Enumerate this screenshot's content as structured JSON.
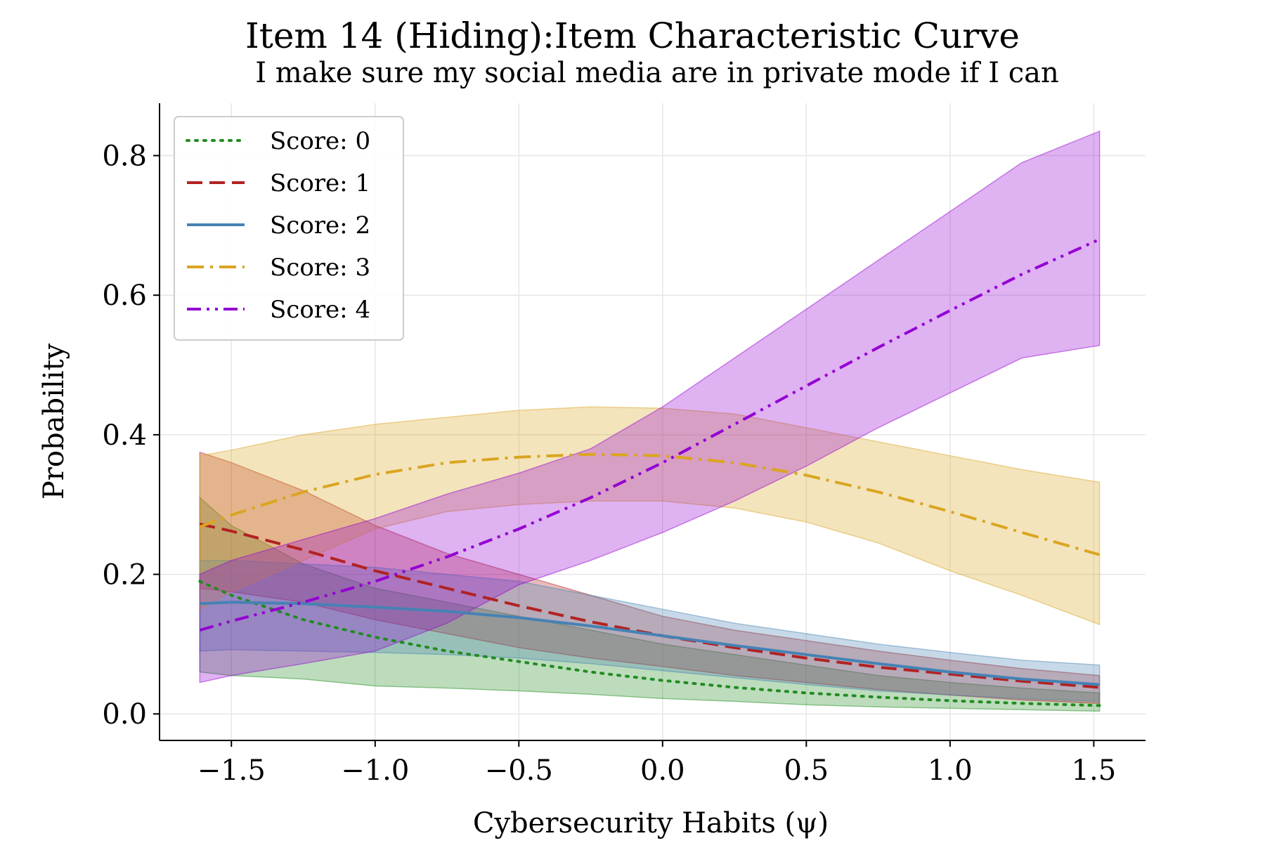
{
  "chart_data": {
    "type": "line",
    "title": "Item 14 (Hiding):Item Characteristic Curve",
    "subtitle": "I make sure my social media are in private mode if I can",
    "xlabel": "Cybersecurity Habits (ψ)",
    "ylabel": "Probability",
    "xlim": [
      -1.75,
      1.68
    ],
    "ylim": [
      -0.038,
      0.875
    ],
    "xticks": [
      -1.5,
      -1.0,
      -0.5,
      0.0,
      0.5,
      1.0,
      1.5
    ],
    "xtick_labels": [
      "−1.5",
      "−1.0",
      "−0.5",
      "0.0",
      "0.5",
      "1.0",
      "1.5"
    ],
    "yticks": [
      0.0,
      0.2,
      0.4,
      0.6,
      0.8
    ],
    "ytick_labels": [
      "0.0",
      "0.2",
      "0.4",
      "0.6",
      "0.8"
    ],
    "grid": true,
    "legend_position": "top-left",
    "x": [
      -1.61,
      -1.5,
      -1.25,
      -1.0,
      -0.75,
      -0.5,
      -0.25,
      0.0,
      0.25,
      0.5,
      0.75,
      1.0,
      1.25,
      1.52
    ],
    "series": [
      {
        "name": "Score: 0",
        "color": "#228B22",
        "dash": "dotted",
        "values": [
          0.19,
          0.17,
          0.135,
          0.11,
          0.09,
          0.075,
          0.06,
          0.048,
          0.038,
          0.03,
          0.024,
          0.019,
          0.015,
          0.012
        ],
        "lower": [
          0.06,
          0.055,
          0.05,
          0.04,
          0.037,
          0.033,
          0.028,
          0.022,
          0.018,
          0.013,
          0.01,
          0.008,
          0.006,
          0.004
        ],
        "upper": [
          0.31,
          0.27,
          0.215,
          0.18,
          0.16,
          0.14,
          0.12,
          0.1,
          0.085,
          0.07,
          0.055,
          0.045,
          0.037,
          0.03
        ]
      },
      {
        "name": "Score: 1",
        "color": "#B22222",
        "dash": "dashed",
        "values": [
          0.272,
          0.262,
          0.235,
          0.205,
          0.18,
          0.155,
          0.132,
          0.112,
          0.095,
          0.08,
          0.067,
          0.057,
          0.047,
          0.038
        ],
        "lower": [
          0.18,
          0.175,
          0.16,
          0.135,
          0.115,
          0.095,
          0.08,
          0.068,
          0.055,
          0.045,
          0.035,
          0.027,
          0.02,
          0.015
        ],
        "upper": [
          0.375,
          0.36,
          0.32,
          0.27,
          0.23,
          0.2,
          0.17,
          0.14,
          0.12,
          0.105,
          0.09,
          0.077,
          0.065,
          0.055
        ]
      },
      {
        "name": "Score: 2",
        "color": "#4682B4",
        "dash": "solid",
        "values": [
          0.158,
          0.16,
          0.158,
          0.153,
          0.147,
          0.138,
          0.126,
          0.112,
          0.098,
          0.085,
          0.072,
          0.06,
          0.05,
          0.042
        ],
        "lower": [
          0.09,
          0.092,
          0.09,
          0.088,
          0.085,
          0.08,
          0.072,
          0.062,
          0.052,
          0.042,
          0.033,
          0.027,
          0.022,
          0.018
        ],
        "upper": [
          0.22,
          0.22,
          0.215,
          0.21,
          0.2,
          0.19,
          0.17,
          0.15,
          0.13,
          0.115,
          0.1,
          0.088,
          0.077,
          0.07
        ]
      },
      {
        "name": "Score: 3",
        "color": "#DAA520",
        "dash": "dashdot",
        "values": [
          0.268,
          0.285,
          0.318,
          0.343,
          0.36,
          0.368,
          0.372,
          0.37,
          0.36,
          0.342,
          0.318,
          0.29,
          0.26,
          0.228
        ],
        "lower": [
          0.15,
          0.175,
          0.22,
          0.265,
          0.29,
          0.3,
          0.305,
          0.305,
          0.295,
          0.275,
          0.245,
          0.205,
          0.17,
          0.128
        ],
        "upper": [
          0.37,
          0.378,
          0.4,
          0.415,
          0.425,
          0.435,
          0.44,
          0.438,
          0.43,
          0.41,
          0.39,
          0.37,
          0.35,
          0.332
        ]
      },
      {
        "name": "Score: 4",
        "color": "#9400D3",
        "dash": "dashdotdot",
        "values": [
          0.12,
          0.133,
          0.16,
          0.19,
          0.225,
          0.265,
          0.31,
          0.36,
          0.415,
          0.47,
          0.525,
          0.578,
          0.63,
          0.68
        ],
        "lower": [
          0.045,
          0.055,
          0.072,
          0.09,
          0.13,
          0.185,
          0.22,
          0.26,
          0.305,
          0.355,
          0.41,
          0.46,
          0.51,
          0.528
        ],
        "upper": [
          0.2,
          0.22,
          0.25,
          0.28,
          0.315,
          0.345,
          0.38,
          0.44,
          0.51,
          0.58,
          0.65,
          0.72,
          0.79,
          0.835
        ]
      }
    ]
  }
}
